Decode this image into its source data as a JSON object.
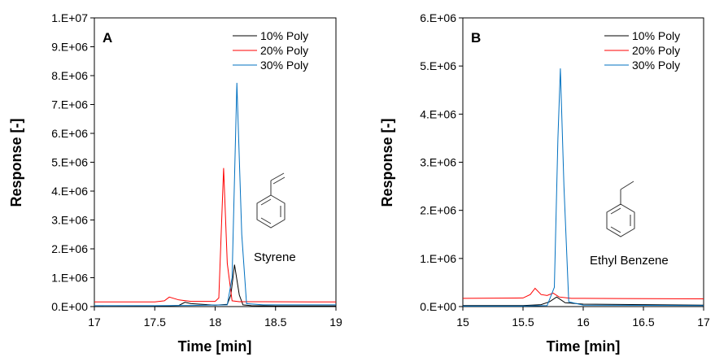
{
  "colors": {
    "c10": "#000000",
    "c20": "#ff0000",
    "c30": "#0070c0"
  },
  "chart_data": [
    {
      "type": "line",
      "panel_label": "A",
      "xlabel": "Time [min]",
      "ylabel": "Response [-]",
      "xlim": [
        17,
        19
      ],
      "ylim": [
        0,
        10000000
      ],
      "xticks": [
        "17",
        "17.5",
        "18",
        "18.5",
        "19"
      ],
      "yticks": [
        "0.E+00",
        "1.E+06",
        "2.E+06",
        "3.E+06",
        "4.E+06",
        "5.E+06",
        "6.E+06",
        "7.E+06",
        "8.E+06",
        "9.E+06",
        "1.E+07"
      ],
      "legend_position": "top-right",
      "annotation": "Styrene",
      "series": [
        {
          "name": "10% Poly",
          "color_key": "c10",
          "x": [
            17,
            17.5,
            17.7,
            17.75,
            17.8,
            18.0,
            18.1,
            18.13,
            18.16,
            18.2,
            18.23,
            18.3,
            18.5,
            19
          ],
          "y": [
            0,
            10000,
            40000,
            150000,
            100000,
            50000,
            80000,
            400000,
            1450000,
            400000,
            60000,
            30000,
            20000,
            20000
          ]
        },
        {
          "name": "20% Poly",
          "color_key": "c20",
          "x": [
            17,
            17.5,
            17.58,
            17.62,
            17.7,
            17.8,
            18.0,
            18.03,
            18.07,
            18.1,
            18.14,
            18.2,
            18.4,
            19
          ],
          "y": [
            160000,
            160000,
            200000,
            330000,
            230000,
            180000,
            180000,
            300000,
            4800000,
            1500000,
            200000,
            170000,
            170000,
            160000
          ]
        },
        {
          "name": "30% Poly",
          "color_key": "c30",
          "x": [
            17,
            17.5,
            17.8,
            18.1,
            18.14,
            18.18,
            18.22,
            18.26,
            18.4,
            19
          ],
          "y": [
            30000,
            30000,
            40000,
            60000,
            1000000,
            7750000,
            2500000,
            100000,
            60000,
            60000
          ]
        }
      ]
    },
    {
      "type": "line",
      "panel_label": "B",
      "xlabel": "Time [min]",
      "ylabel": "Response [-]",
      "xlim": [
        15,
        17
      ],
      "ylim": [
        0,
        6000000
      ],
      "xticks": [
        "15",
        "15.5",
        "16",
        "16.5",
        "17"
      ],
      "yticks": [
        "0.E+00",
        "1.E+06",
        "2.E+06",
        "3.E+06",
        "4.E+06",
        "5.E+06",
        "6.E+06"
      ],
      "legend_position": "top-right",
      "annotation": "Ethyl Benzene",
      "series": [
        {
          "name": "10% Poly",
          "color_key": "c10",
          "x": [
            15,
            15.5,
            15.65,
            15.72,
            15.78,
            15.85,
            16.0,
            16.5,
            17
          ],
          "y": [
            20000,
            20000,
            40000,
            100000,
            200000,
            80000,
            50000,
            40000,
            30000
          ]
        },
        {
          "name": "20% Poly",
          "color_key": "c20",
          "x": [
            15,
            15.5,
            15.56,
            15.6,
            15.65,
            15.7,
            15.75,
            15.8,
            15.9,
            16.0,
            17
          ],
          "y": [
            170000,
            180000,
            250000,
            380000,
            250000,
            230000,
            280000,
            200000,
            170000,
            170000,
            160000
          ]
        },
        {
          "name": "30% Poly",
          "color_key": "c30",
          "x": [
            15,
            15.5,
            15.7,
            15.76,
            15.79,
            15.81,
            15.84,
            15.88,
            16.0,
            17
          ],
          "y": [
            10000,
            10000,
            20000,
            400000,
            3500000,
            4950000,
            2500000,
            100000,
            30000,
            20000
          ]
        }
      ]
    }
  ]
}
